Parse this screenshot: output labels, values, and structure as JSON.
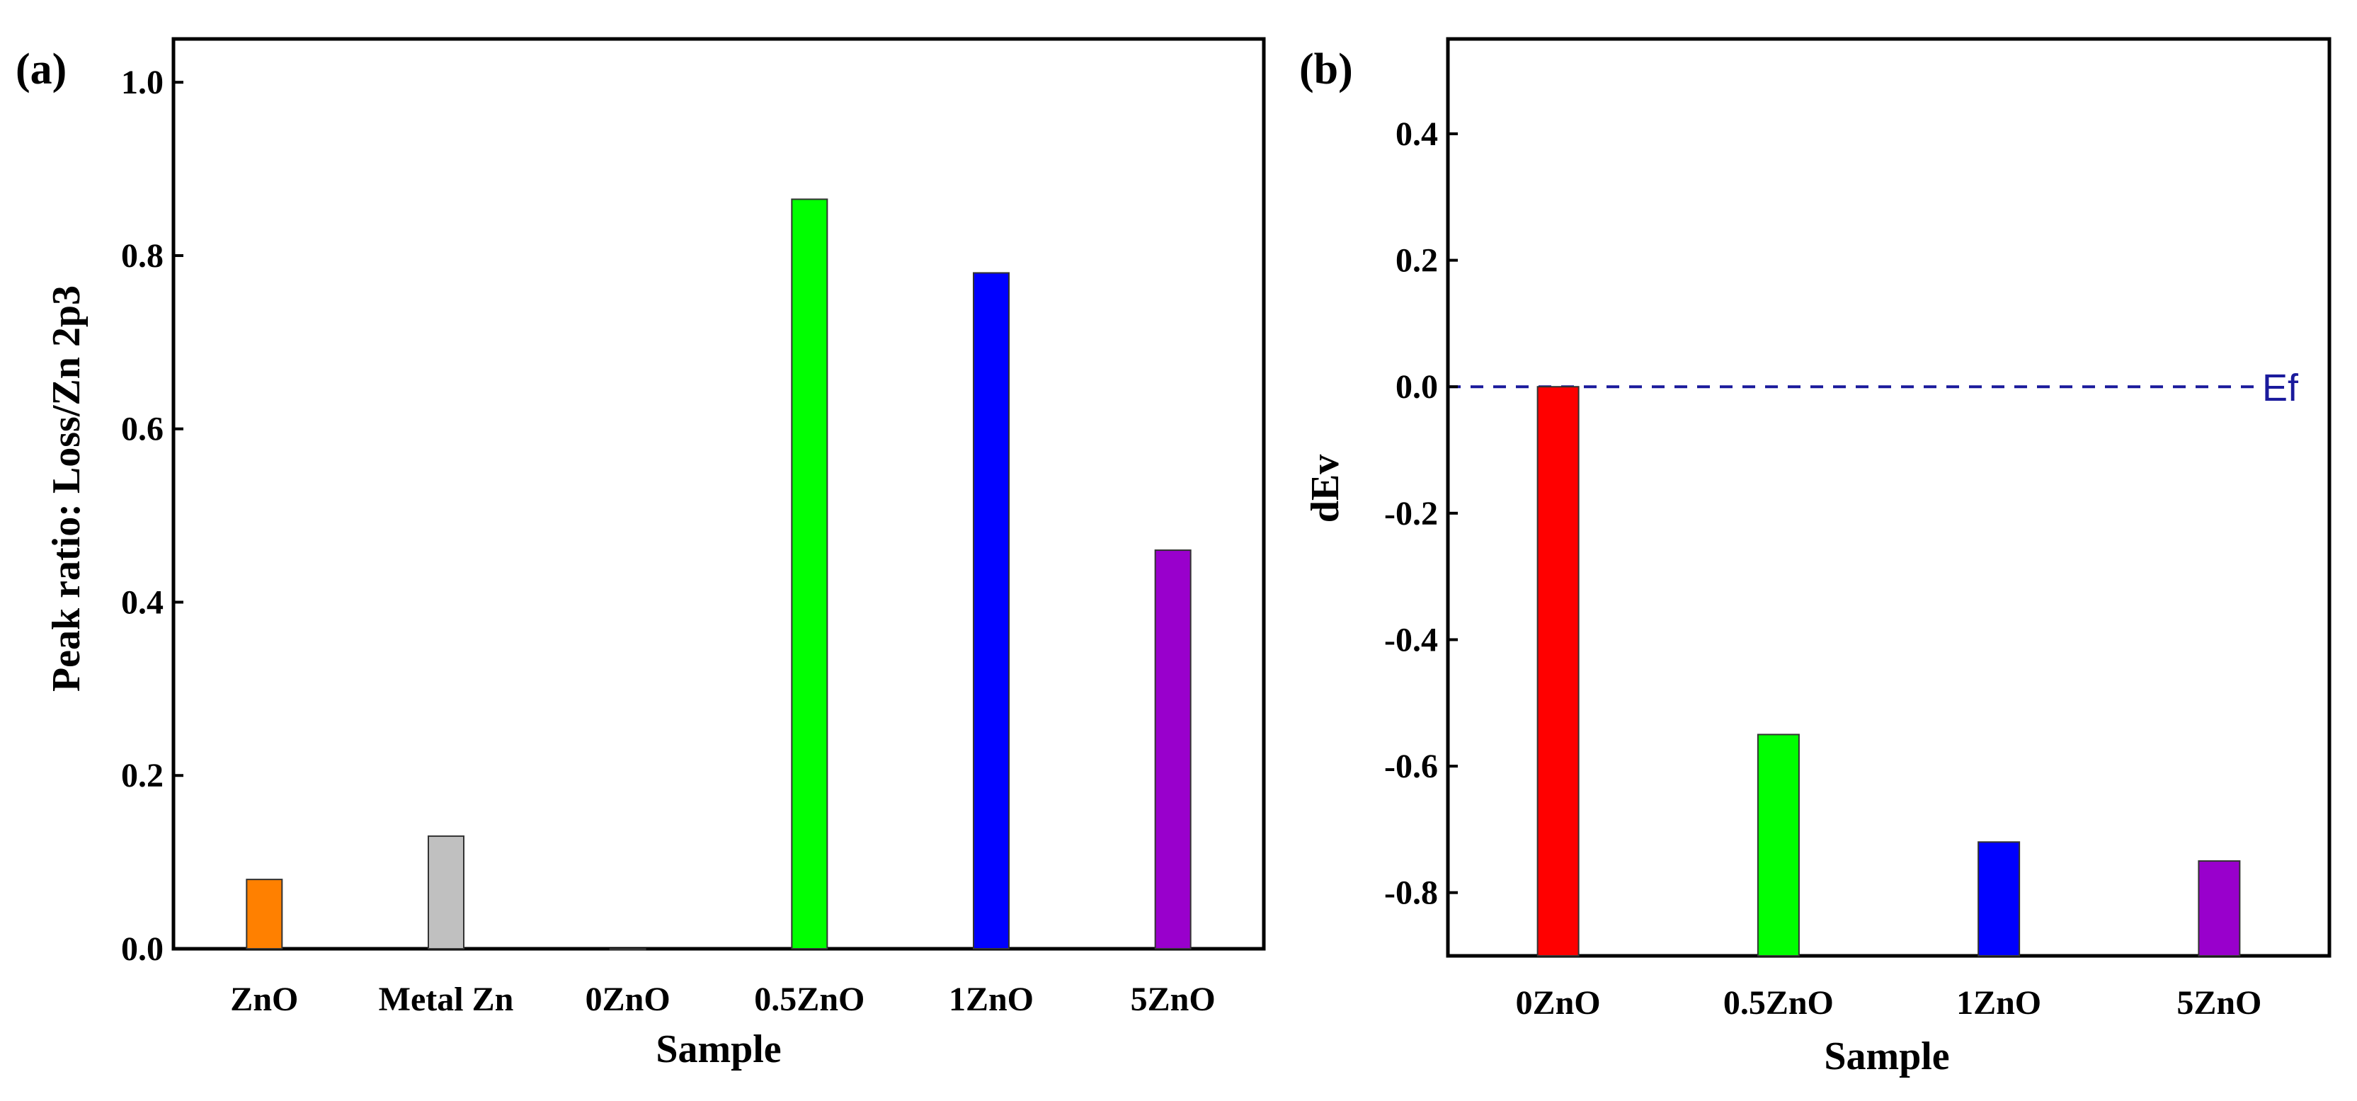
{
  "chart_data": [
    {
      "type": "bar",
      "panel_label": "(a)",
      "xlabel": "Sample",
      "ylabel": "Peak ratio: Loss/Zn 2p3",
      "ylim": [
        0,
        1.05
      ],
      "yticks": [
        0.0,
        0.2,
        0.4,
        0.6,
        0.8,
        1.0
      ],
      "ytick_labels": [
        "0.0",
        "0.2",
        "0.4",
        "0.6",
        "0.8",
        "1.0"
      ],
      "categories": [
        "ZnO",
        "Metal Zn",
        "0ZnO",
        "0.5ZnO",
        "1ZnO",
        "5ZnO"
      ],
      "values": [
        0.08,
        0.13,
        0.0,
        0.865,
        0.78,
        0.46
      ],
      "colors": [
        "#ff8000",
        "#c0c0c0",
        "#ff0000",
        "#00ff00",
        "#0000ff",
        "#9900cc"
      ]
    },
    {
      "type": "bar",
      "panel_label": "(b)",
      "xlabel": "Sample",
      "ylabel": "dEv",
      "ylim": [
        -0.9,
        0.55
      ],
      "yticks": [
        -0.8,
        -0.6,
        -0.4,
        -0.2,
        0.0,
        0.2,
        0.4
      ],
      "ytick_labels": [
        "-0.8",
        "-0.6",
        "-0.4",
        "-0.2",
        "0.0",
        "0.2",
        "0.4"
      ],
      "categories": [
        "0ZnO",
        "0.5ZnO",
        "1ZnO",
        "5ZnO"
      ],
      "values": [
        -0.0,
        -0.55,
        -0.72,
        -0.75
      ],
      "colors": [
        "#ff0000",
        "#00ff00",
        "#0000ff",
        "#9900cc"
      ],
      "reference_line": {
        "value": 0.0,
        "label": "Ef",
        "style": "dashed",
        "color": "#1a1a9c"
      }
    }
  ]
}
